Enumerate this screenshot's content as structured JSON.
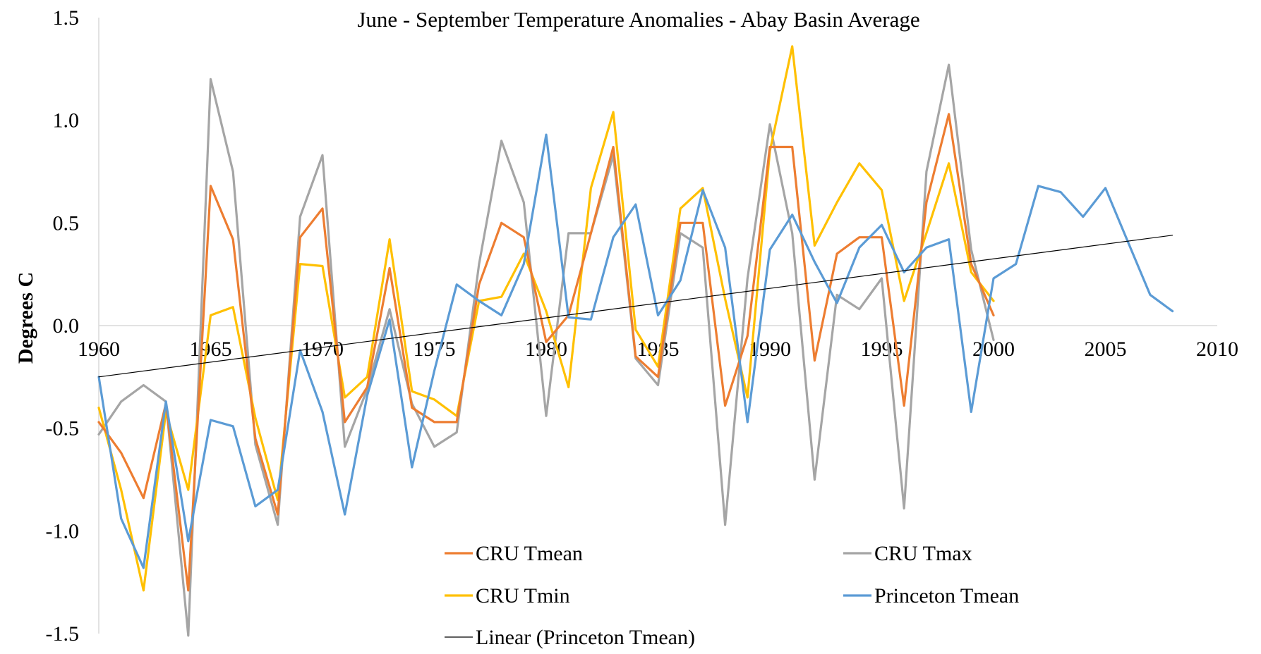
{
  "chart_data": {
    "type": "line",
    "title": "June - September Temperature Anomalies - Abay Basin Average",
    "xlabel": "",
    "ylabel": "Degrees C",
    "xlim": [
      1960,
      2010
    ],
    "ylim": [
      -1.5,
      1.5
    ],
    "x_ticks": [
      1960,
      1965,
      1970,
      1975,
      1980,
      1985,
      1990,
      1995,
      2000,
      2005,
      2010
    ],
    "y_ticks": [
      -1.5,
      -1.0,
      -0.5,
      0.0,
      0.5,
      1.0,
      1.5
    ],
    "x_tick_labels": [
      "1960",
      "1965",
      "1970",
      "1975",
      "1980",
      "1985",
      "1990",
      "1995",
      "2000",
      "2005",
      "2010"
    ],
    "y_tick_labels": [
      "-1.5",
      "-1.0",
      "-0.5",
      "0.0",
      "0.5",
      "1.0",
      "1.5"
    ],
    "grid": false,
    "legend_position": "bottom",
    "series": [
      {
        "name": "CRU Tmean",
        "color": "#ED7D31",
        "x": [
          1960,
          1961,
          1962,
          1963,
          1964,
          1965,
          1966,
          1967,
          1968,
          1969,
          1970,
          1971,
          1972,
          1973,
          1974,
          1975,
          1976,
          1977,
          1978,
          1979,
          1980,
          1981,
          1982,
          1983,
          1984,
          1985,
          1986,
          1987,
          1988,
          1989,
          1990,
          1991,
          1992,
          1993,
          1994,
          1995,
          1996,
          1997,
          1998,
          1999,
          2000
        ],
        "values": [
          -0.47,
          -0.62,
          -0.84,
          -0.38,
          -1.29,
          0.68,
          0.42,
          -0.55,
          -0.92,
          0.43,
          0.57,
          -0.47,
          -0.3,
          0.28,
          -0.4,
          -0.47,
          -0.47,
          0.2,
          0.5,
          0.43,
          -0.08,
          0.05,
          0.45,
          0.87,
          -0.15,
          -0.25,
          0.5,
          0.5,
          -0.39,
          -0.05,
          0.87,
          0.87,
          -0.17,
          0.35,
          0.43,
          0.43,
          -0.39,
          0.6,
          1.03,
          0.3,
          0.05
        ]
      },
      {
        "name": "CRU Tmax",
        "color": "#A5A5A5",
        "x": [
          1960,
          1961,
          1962,
          1963,
          1964,
          1965,
          1966,
          1967,
          1968,
          1969,
          1970,
          1971,
          1972,
          1973,
          1974,
          1975,
          1976,
          1977,
          1978,
          1979,
          1980,
          1981,
          1982,
          1983,
          1984,
          1985,
          1986,
          1987,
          1988,
          1989,
          1990,
          1991,
          1992,
          1993,
          1994,
          1995,
          1996,
          1997,
          1998,
          1999,
          2000
        ],
        "values": [
          -0.53,
          -0.37,
          -0.29,
          -0.37,
          -1.51,
          1.2,
          0.75,
          -0.58,
          -0.97,
          0.53,
          0.83,
          -0.59,
          -0.31,
          0.08,
          -0.38,
          -0.59,
          -0.52,
          0.3,
          0.9,
          0.6,
          -0.44,
          0.45,
          0.45,
          0.83,
          -0.16,
          -0.29,
          0.45,
          0.38,
          -0.97,
          0.23,
          0.98,
          0.45,
          -0.75,
          0.15,
          0.08,
          0.23,
          -0.89,
          0.75,
          1.27,
          0.37,
          -0.07
        ]
      },
      {
        "name": "CRU Tmin",
        "color": "#FFC000",
        "x": [
          1960,
          1961,
          1962,
          1963,
          1964,
          1965,
          1966,
          1967,
          1968,
          1969,
          1970,
          1971,
          1972,
          1973,
          1974,
          1975,
          1976,
          1977,
          1978,
          1979,
          1980,
          1981,
          1982,
          1983,
          1984,
          1985,
          1986,
          1987,
          1988,
          1989,
          1990,
          1991,
          1992,
          1993,
          1994,
          1995,
          1996,
          1997,
          1998,
          1999,
          2000
        ],
        "values": [
          -0.4,
          -0.8,
          -1.29,
          -0.42,
          -0.8,
          0.05,
          0.09,
          -0.45,
          -0.85,
          0.3,
          0.29,
          -0.35,
          -0.25,
          0.42,
          -0.32,
          -0.36,
          -0.44,
          0.12,
          0.14,
          0.35,
          0.07,
          -0.3,
          0.67,
          1.04,
          -0.02,
          -0.2,
          0.57,
          0.67,
          0.13,
          -0.35,
          0.85,
          1.36,
          0.39,
          0.6,
          0.79,
          0.66,
          0.12,
          0.45,
          0.79,
          0.26,
          0.12
        ]
      },
      {
        "name": "Princeton Tmean",
        "color": "#5B9BD5",
        "x": [
          1960,
          1961,
          1962,
          1963,
          1964,
          1965,
          1966,
          1967,
          1968,
          1969,
          1970,
          1971,
          1972,
          1973,
          1974,
          1975,
          1976,
          1977,
          1978,
          1979,
          1980,
          1981,
          1982,
          1983,
          1984,
          1985,
          1986,
          1987,
          1988,
          1989,
          1990,
          1991,
          1992,
          1993,
          1994,
          1995,
          1996,
          1997,
          1998,
          1999,
          2000,
          2001,
          2002,
          2003,
          2004,
          2005,
          2006,
          2007,
          2008
        ],
        "values": [
          -0.25,
          -0.94,
          -1.18,
          -0.37,
          -1.05,
          -0.46,
          -0.49,
          -0.88,
          -0.8,
          -0.12,
          -0.42,
          -0.92,
          -0.34,
          0.03,
          -0.69,
          -0.22,
          0.2,
          0.12,
          0.05,
          0.3,
          0.93,
          0.04,
          0.03,
          0.43,
          0.59,
          0.05,
          0.22,
          0.66,
          0.38,
          -0.47,
          0.37,
          0.54,
          0.31,
          0.11,
          0.38,
          0.49,
          0.26,
          0.38,
          0.42,
          -0.42,
          0.23,
          0.3,
          0.68,
          0.65,
          0.53,
          0.67,
          0.41,
          0.15,
          0.07
        ]
      },
      {
        "name": "Linear (Princeton Tmean)",
        "color": "#000000",
        "x": [
          1960,
          2008
        ],
        "values": [
          -0.25,
          0.44
        ]
      }
    ]
  }
}
